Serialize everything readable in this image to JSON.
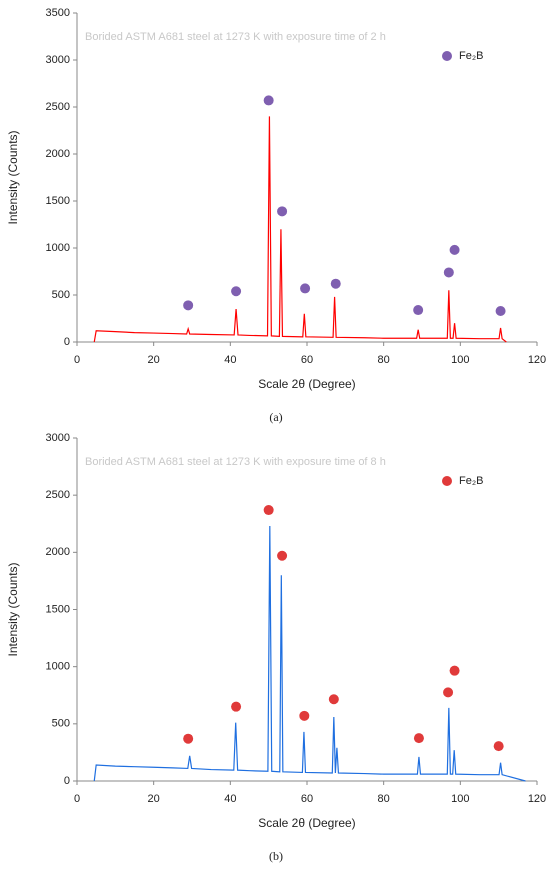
{
  "chart_data": [
    {
      "type": "line",
      "title": "Borided ASTM A681 steel at 1273 K with exposure time of 2 h",
      "xlabel": "Scale 2θ (Degree)",
      "ylabel": "Intensity (Counts)",
      "caption": "(a)",
      "xlim": [
        0,
        120
      ],
      "xticks": [
        0,
        20,
        40,
        60,
        80,
        100,
        120
      ],
      "ylim": [
        0,
        3500
      ],
      "yticks": [
        0,
        500,
        1000,
        1500,
        2000,
        2500,
        3000,
        3500
      ],
      "legend": "upper right",
      "series": [
        {
          "color": "#ff0000",
          "x": [
            4.5,
            5,
            10,
            15,
            20,
            25,
            28.6,
            29,
            29.4,
            35,
            41,
            41.5,
            42,
            45,
            49.7,
            50.2,
            50.7,
            52.8,
            53.2,
            53.6,
            58.9,
            59.3,
            59.7,
            66.8,
            67.2,
            67.6,
            75,
            80,
            88.6,
            89,
            89.4,
            96.6,
            97,
            97.4,
            98.1,
            98.5,
            98.9,
            105,
            110.1,
            110.5,
            110.9,
            112
          ],
          "values": [
            0,
            120,
            110,
            100,
            95,
            90,
            85,
            140,
            85,
            80,
            75,
            350,
            75,
            70,
            65,
            2400,
            65,
            60,
            1200,
            60,
            55,
            300,
            55,
            50,
            480,
            50,
            45,
            40,
            40,
            130,
            40,
            40,
            550,
            40,
            40,
            200,
            40,
            35,
            35,
            150,
            35,
            0
          ]
        }
      ],
      "markers": {
        "name": "Fe₂B",
        "color": "#7f5fb0",
        "x": [
          29,
          41.5,
          50,
          53.5,
          59.5,
          67.5,
          89,
          97,
          98.5,
          110.5
        ],
        "values": [
          390,
          540,
          2570,
          1390,
          570,
          620,
          340,
          740,
          980,
          330
        ]
      }
    },
    {
      "type": "line",
      "title": "Borided ASTM A681 steel at 1273 K with exposure time of 8 h",
      "xlabel": "Scale 2θ (Degree)",
      "ylabel": "Intensity (Counts)",
      "caption": "(b)",
      "xlim": [
        0,
        120
      ],
      "xticks": [
        0,
        20,
        40,
        60,
        80,
        100,
        120
      ],
      "ylim": [
        0,
        3000
      ],
      "yticks": [
        0,
        500,
        1000,
        1500,
        2000,
        2500,
        3000
      ],
      "legend": "upper right",
      "series": [
        {
          "color": "#1f6fe0",
          "x": [
            4.5,
            5,
            10,
            15,
            20,
            25,
            28.9,
            29.4,
            29.9,
            35,
            40.9,
            41.4,
            41.9,
            45,
            49.8,
            50.3,
            50.8,
            52.9,
            53.3,
            53.7,
            58.8,
            59.2,
            59.6,
            66.6,
            67,
            67.4,
            67.8,
            68.2,
            75,
            80,
            88.8,
            89.2,
            89.6,
            96.6,
            97,
            97.4,
            98,
            98.4,
            98.8,
            105,
            110.1,
            110.5,
            110.9,
            117
          ],
          "values": [
            0,
            140,
            130,
            125,
            120,
            115,
            110,
            220,
            110,
            100,
            95,
            510,
            95,
            90,
            85,
            2230,
            85,
            80,
            1800,
            80,
            75,
            430,
            75,
            70,
            560,
            70,
            290,
            70,
            65,
            60,
            60,
            210,
            60,
            60,
            640,
            60,
            60,
            270,
            60,
            55,
            55,
            160,
            55,
            0
          ]
        }
      ],
      "markers": {
        "name": "Fe₂B",
        "color": "#e03a3a",
        "x": [
          29,
          41.5,
          50,
          53.5,
          59.3,
          67,
          89.2,
          96.8,
          98.5,
          110
        ],
        "values": [
          370,
          650,
          2370,
          1970,
          570,
          715,
          375,
          775,
          965,
          305
        ]
      }
    }
  ]
}
